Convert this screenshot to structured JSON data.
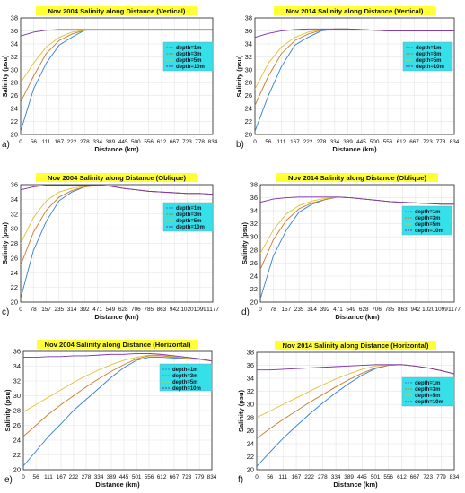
{
  "figure": {
    "series_colors": [
      "#2f7fd6",
      "#c97a2a",
      "#e0c030",
      "#7a2fb0"
    ],
    "legend_bg": "#36e0e8",
    "title_bg": "#ffff33"
  },
  "chart_data": [
    {
      "panel_label": "a)",
      "type": "line",
      "title": "Nov 2004 Salinity along Distance (Vertical)",
      "xlabel": "Distance (km)",
      "ylabel": "Salinity (psu)",
      "x_tick_labels": [
        "0",
        "56",
        "111",
        "167",
        "222",
        "278",
        "334",
        "389",
        "445",
        "500",
        "556",
        "612",
        "667",
        "723",
        "778",
        "834"
      ],
      "x": [
        0,
        56,
        111,
        167,
        222,
        278,
        334,
        389,
        445,
        500,
        556,
        612,
        667,
        723,
        778,
        834
      ],
      "y_ticks": [
        20,
        22,
        24,
        26,
        28,
        30,
        32,
        34,
        36,
        38
      ],
      "ylim": [
        20,
        38
      ],
      "legend": "right, mid",
      "series": [
        {
          "name": "depth=1m",
          "values": [
            20.5,
            27.0,
            31.0,
            33.8,
            35.0,
            36.1,
            36.2,
            36.2,
            36.2,
            36.2,
            36.2,
            36.2,
            36.2,
            36.2,
            36.2,
            36.2
          ]
        },
        {
          "name": "depth=3m",
          "values": [
            25.0,
            29.0,
            32.5,
            34.5,
            35.5,
            36.1,
            36.2,
            36.2,
            36.2,
            36.2,
            36.2,
            36.2,
            36.2,
            36.2,
            36.2,
            36.2
          ]
        },
        {
          "name": "depth=5m",
          "values": [
            28.0,
            31.0,
            33.5,
            35.0,
            35.8,
            36.1,
            36.2,
            36.2,
            36.2,
            36.2,
            36.2,
            36.2,
            36.2,
            36.2,
            36.2,
            36.2
          ]
        },
        {
          "name": "depth=10m",
          "values": [
            35.2,
            35.8,
            36.1,
            36.2,
            36.2,
            36.2,
            36.2,
            36.2,
            36.2,
            36.2,
            36.2,
            36.2,
            36.2,
            36.2,
            36.2,
            36.2
          ]
        }
      ]
    },
    {
      "panel_label": "b)",
      "type": "line",
      "title": "Nov 2014 Salinity along Distance (Vertical)",
      "xlabel": "Distance (km)",
      "ylabel": "Salinity (psu)",
      "x_tick_labels": [
        "0",
        "56",
        "111",
        "167",
        "222",
        "278",
        "334",
        "389",
        "445",
        "500",
        "556",
        "612",
        "667",
        "723",
        "778",
        "834"
      ],
      "x": [
        0,
        56,
        111,
        167,
        222,
        278,
        334,
        389,
        445,
        500,
        556,
        612,
        667,
        723,
        778,
        834
      ],
      "y_ticks": [
        20,
        22,
        24,
        26,
        28,
        30,
        32,
        34,
        36,
        38
      ],
      "ylim": [
        20,
        38
      ],
      "legend": "right, mid",
      "series": [
        {
          "name": "depth=1m",
          "values": [
            20.5,
            26.0,
            30.5,
            33.8,
            35.0,
            36.0,
            36.3,
            36.3,
            36.2,
            36.1,
            36.0,
            36.0,
            36.0,
            36.0,
            36.0,
            36.0
          ]
        },
        {
          "name": "depth=3m",
          "values": [
            24.5,
            29.0,
            32.5,
            34.5,
            35.5,
            36.1,
            36.3,
            36.3,
            36.2,
            36.1,
            36.0,
            36.0,
            36.0,
            36.0,
            36.0,
            36.0
          ]
        },
        {
          "name": "depth=5m",
          "values": [
            27.0,
            31.0,
            33.5,
            35.0,
            35.8,
            36.2,
            36.3,
            36.3,
            36.2,
            36.1,
            36.0,
            36.0,
            36.0,
            36.0,
            36.0,
            36.0
          ]
        },
        {
          "name": "depth=10m",
          "values": [
            35.0,
            35.6,
            36.0,
            36.2,
            36.3,
            36.3,
            36.3,
            36.3,
            36.2,
            36.1,
            36.0,
            36.0,
            36.0,
            36.0,
            36.0,
            36.0
          ]
        }
      ]
    },
    {
      "panel_label": "c)",
      "type": "line",
      "title": "Nov 2004 Salinity along Distance (Oblique)",
      "xlabel": "Distance (km)",
      "ylabel": "Salinity (psu)",
      "x_tick_labels": [
        "0",
        "78",
        "157",
        "235",
        "314",
        "392",
        "471",
        "549",
        "628",
        "706",
        "785",
        "863",
        "942",
        "1020",
        "1099",
        "1177"
      ],
      "x": [
        0,
        78,
        157,
        235,
        314,
        392,
        471,
        549,
        628,
        706,
        785,
        863,
        942,
        1020,
        1099,
        1177
      ],
      "y_ticks": [
        20,
        22,
        24,
        26,
        28,
        30,
        32,
        34,
        36
      ],
      "ylim": [
        20,
        36
      ],
      "legend": "right, mid",
      "series": [
        {
          "name": "depth=1m",
          "values": [
            20.5,
            27.0,
            31.0,
            33.8,
            35.0,
            35.7,
            35.9,
            35.8,
            35.5,
            35.3,
            35.1,
            35.0,
            34.9,
            34.8,
            34.8,
            34.7
          ]
        },
        {
          "name": "depth=3m",
          "values": [
            25.0,
            29.5,
            32.5,
            34.3,
            35.2,
            35.7,
            35.9,
            35.8,
            35.5,
            35.3,
            35.1,
            35.0,
            34.9,
            34.8,
            34.8,
            34.7
          ]
        },
        {
          "name": "depth=5m",
          "values": [
            28.0,
            31.5,
            33.8,
            35.0,
            35.5,
            35.8,
            35.9,
            35.8,
            35.5,
            35.3,
            35.1,
            35.0,
            34.9,
            34.8,
            34.8,
            34.7
          ]
        },
        {
          "name": "depth=10m",
          "values": [
            35.3,
            35.7,
            35.9,
            35.9,
            35.9,
            35.9,
            35.9,
            35.8,
            35.5,
            35.3,
            35.1,
            35.0,
            34.9,
            34.8,
            34.8,
            34.7
          ]
        }
      ]
    },
    {
      "panel_label": "d)",
      "type": "line",
      "title": "Nov 2014 Salinity along Distance (Oblique)",
      "xlabel": "Distance (km)",
      "ylabel": "Salinity (psu)",
      "x_tick_labels": [
        "0",
        "78",
        "157",
        "235",
        "314",
        "392",
        "471",
        "549",
        "628",
        "706",
        "785",
        "863",
        "942",
        "1020",
        "1099",
        "1177"
      ],
      "x": [
        0,
        78,
        157,
        235,
        314,
        392,
        471,
        549,
        628,
        706,
        785,
        863,
        942,
        1020,
        1099,
        1177
      ],
      "y_ticks": [
        20,
        22,
        24,
        26,
        28,
        30,
        32,
        34,
        36,
        38
      ],
      "ylim": [
        20,
        38
      ],
      "legend": "right, mid",
      "series": [
        {
          "name": "depth=1m",
          "values": [
            20.5,
            27.0,
            31.0,
            33.8,
            35.0,
            35.7,
            36.1,
            36.0,
            35.8,
            35.6,
            35.4,
            35.3,
            35.2,
            35.1,
            35.0,
            35.0
          ]
        },
        {
          "name": "depth=3m",
          "values": [
            25.0,
            29.5,
            32.5,
            34.3,
            35.2,
            35.7,
            36.1,
            36.0,
            35.8,
            35.6,
            35.4,
            35.3,
            35.2,
            35.1,
            35.0,
            35.0
          ]
        },
        {
          "name": "depth=5m",
          "values": [
            27.5,
            31.0,
            33.5,
            34.8,
            35.5,
            35.9,
            36.1,
            36.0,
            35.8,
            35.6,
            35.4,
            35.3,
            35.2,
            35.1,
            35.0,
            35.0
          ]
        },
        {
          "name": "depth=10m",
          "values": [
            35.3,
            35.8,
            36.0,
            36.1,
            36.1,
            36.1,
            36.1,
            36.0,
            35.8,
            35.6,
            35.4,
            35.3,
            35.2,
            35.1,
            35.0,
            35.0
          ]
        }
      ]
    },
    {
      "panel_label": "e)",
      "type": "line",
      "title": "Nov 2004 Salinity along Distance (Horizontal)",
      "xlabel": "Distance (km)",
      "ylabel": "Salinity (psu)",
      "x_tick_labels": [
        "0",
        "56",
        "111",
        "167",
        "222",
        "278",
        "334",
        "389",
        "445",
        "501",
        "556",
        "612",
        "667",
        "723",
        "779",
        "834"
      ],
      "x": [
        0,
        56,
        111,
        167,
        222,
        278,
        334,
        389,
        445,
        501,
        556,
        612,
        667,
        723,
        779,
        834
      ],
      "y_ticks": [
        20,
        22,
        24,
        26,
        28,
        30,
        32,
        34,
        36
      ],
      "ylim": [
        20,
        36
      ],
      "legend": "right, upper",
      "series": [
        {
          "name": "depth=1m",
          "values": [
            20.5,
            22.5,
            24.5,
            26.2,
            28.0,
            29.5,
            31.0,
            32.5,
            33.8,
            34.8,
            35.2,
            35.2,
            35.1,
            35.0,
            34.9,
            34.7
          ]
        },
        {
          "name": "depth=3m",
          "values": [
            24.5,
            26.0,
            27.5,
            28.8,
            30.0,
            31.2,
            32.3,
            33.3,
            34.2,
            35.0,
            35.4,
            35.4,
            35.2,
            35.1,
            34.9,
            34.7
          ]
        },
        {
          "name": "depth=5m",
          "values": [
            27.8,
            28.8,
            29.8,
            30.8,
            31.8,
            32.7,
            33.5,
            34.2,
            34.8,
            35.2,
            35.5,
            35.5,
            35.3,
            35.1,
            34.9,
            34.7
          ]
        },
        {
          "name": "depth=10m",
          "values": [
            35.2,
            35.2,
            35.3,
            35.3,
            35.4,
            35.4,
            35.5,
            35.6,
            35.6,
            35.7,
            35.7,
            35.6,
            35.4,
            35.2,
            35.0,
            34.7
          ]
        }
      ]
    },
    {
      "panel_label": "f)",
      "type": "line",
      "title": "Nov 2014 Salinity along Distance (Horizontal)",
      "xlabel": "Distance (km)",
      "ylabel": "Salinity (psu)",
      "x_tick_labels": [
        "0",
        "56",
        "111",
        "167",
        "222",
        "278",
        "334",
        "389",
        "445",
        "501",
        "556",
        "612",
        "667",
        "723",
        "779",
        "834"
      ],
      "x": [
        0,
        56,
        111,
        167,
        222,
        278,
        334,
        389,
        445,
        501,
        556,
        612,
        667,
        723,
        779,
        834
      ],
      "y_ticks": [
        20,
        22,
        24,
        26,
        28,
        30,
        32,
        34,
        36,
        38
      ],
      "ylim": [
        20,
        38
      ],
      "legend": "right, mid",
      "series": [
        {
          "name": "depth=1m",
          "values": [
            20.5,
            22.7,
            24.8,
            26.7,
            28.5,
            30.2,
            31.8,
            33.2,
            34.5,
            35.5,
            36.0,
            36.1,
            35.9,
            35.6,
            35.2,
            34.7
          ]
        },
        {
          "name": "depth=3m",
          "values": [
            24.8,
            26.3,
            27.7,
            29.0,
            30.3,
            31.5,
            32.7,
            33.8,
            34.8,
            35.6,
            36.0,
            36.1,
            35.9,
            35.6,
            35.2,
            34.7
          ]
        },
        {
          "name": "depth=5m",
          "values": [
            28.0,
            29.0,
            30.0,
            31.0,
            32.0,
            33.0,
            33.9,
            34.7,
            35.4,
            35.9,
            36.1,
            36.1,
            35.9,
            35.6,
            35.2,
            34.7
          ]
        },
        {
          "name": "depth=10m",
          "values": [
            35.3,
            35.3,
            35.4,
            35.5,
            35.6,
            35.7,
            35.8,
            35.9,
            36.0,
            36.1,
            36.1,
            36.1,
            35.9,
            35.6,
            35.2,
            34.7
          ]
        }
      ]
    }
  ]
}
